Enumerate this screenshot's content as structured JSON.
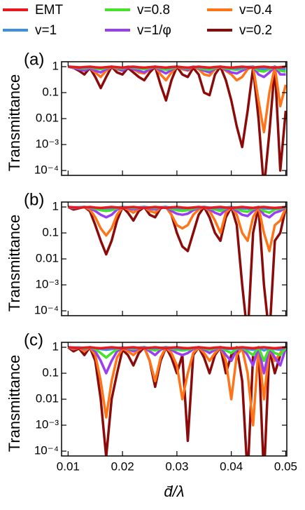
{
  "chart_data": [
    {
      "type": "line",
      "label": "(a)",
      "ylabel": "Transmittance",
      "log_y": true,
      "legend": "top",
      "xlim": [
        0.0088,
        0.0502
      ],
      "ylim": [
        6.5e-05,
        1.55
      ],
      "xticks": [
        0.01,
        0.02,
        0.03,
        0.04,
        0.05
      ],
      "yticks": [
        1,
        0.1,
        0.01,
        {
          "value": 0.001,
          "label": "10⁻³"
        },
        {
          "value": 0.0001,
          "label": "10⁻⁴"
        }
      ],
      "x": [
        0.01,
        0.011,
        0.012,
        0.013,
        0.014,
        0.015,
        0.016,
        0.017,
        0.018,
        0.019,
        0.02,
        0.021,
        0.022,
        0.023,
        0.024,
        0.025,
        0.026,
        0.027,
        0.028,
        0.029,
        0.03,
        0.031,
        0.032,
        0.033,
        0.034,
        0.035,
        0.036,
        0.037,
        0.038,
        0.039,
        0.04,
        0.041,
        0.042,
        0.043,
        0.044,
        0.045,
        0.046,
        0.047,
        0.048,
        0.049,
        0.05
      ],
      "series": [
        {
          "name": "EMT",
          "color": "#e8191c",
          "values": [
            1,
            0.97,
            0.93,
            0.97,
            1,
            0.95,
            0.92,
            0.96,
            1,
            0.96,
            0.92,
            0.97,
            1,
            0.95,
            0.92,
            0.96,
            1,
            0.96,
            0.92,
            0.97,
            1,
            0.95,
            0.92,
            0.96,
            1,
            0.96,
            0.92,
            0.97,
            1,
            0.95,
            0.92,
            0.96,
            1,
            0.96,
            0.92,
            0.97,
            1,
            0.95,
            0.92,
            0.96,
            1
          ]
        },
        {
          "name": "v=1",
          "color": "#3f8fe0",
          "values": [
            1,
            0.98,
            0.95,
            0.92,
            0.97,
            0.92,
            0.9,
            0.95,
            1,
            0.95,
            0.92,
            1,
            0.95,
            0.92,
            0.9,
            0.95,
            1,
            0.92,
            0.88,
            0.93,
            1,
            0.95,
            0.9,
            1,
            0.95,
            0.9,
            0.88,
            0.95,
            1,
            0.92,
            0.88,
            0.85,
            0.9,
            0.97,
            1,
            0.85,
            0.8,
            0.9,
            1,
            0.85,
            0.8
          ]
        },
        {
          "name": "v=0.8",
          "color": "#46e12a",
          "values": [
            1,
            0.95,
            0.9,
            0.85,
            0.95,
            0.85,
            0.8,
            0.9,
            1,
            0.9,
            0.85,
            1,
            0.9,
            0.85,
            0.8,
            0.9,
            1,
            0.85,
            0.75,
            0.85,
            1,
            0.9,
            0.85,
            1,
            0.9,
            0.8,
            0.75,
            0.9,
            1,
            0.85,
            0.8,
            0.75,
            0.85,
            0.95,
            1,
            0.7,
            0.65,
            0.8,
            1,
            0.7,
            0.65
          ]
        },
        {
          "name": "v=1/φ",
          "color": "#9a3ff0",
          "values": [
            1,
            0.9,
            0.8,
            0.7,
            0.9,
            0.7,
            0.6,
            0.8,
            1,
            0.85,
            0.7,
            0.95,
            0.8,
            0.7,
            0.6,
            0.8,
            1,
            0.7,
            0.55,
            0.75,
            1,
            0.85,
            0.75,
            1,
            0.85,
            0.7,
            0.6,
            0.85,
            1,
            0.75,
            0.6,
            0.55,
            0.7,
            0.9,
            1,
            0.5,
            0.4,
            0.6,
            1,
            0.5,
            0.5
          ]
        },
        {
          "name": "v=0.4",
          "color": "#ff7417",
          "values": [
            1,
            0.95,
            0.85,
            0.7,
            0.9,
            0.6,
            0.4,
            0.7,
            1,
            0.8,
            0.7,
            0.95,
            0.8,
            0.6,
            0.55,
            0.8,
            1,
            0.5,
            0.3,
            0.6,
            1,
            0.8,
            0.7,
            1,
            0.8,
            0.5,
            0.45,
            0.8,
            1,
            0.7,
            0.5,
            0.3,
            0.4,
            0.8,
            1,
            0.05,
            0.003,
            0.1,
            1,
            0.03,
            0.2
          ]
        },
        {
          "name": "v=0.2",
          "color": "#8b0b0b",
          "values": [
            1,
            0.9,
            0.7,
            0.5,
            0.9,
            0.4,
            0.15,
            0.4,
            1,
            0.6,
            0.5,
            0.9,
            0.6,
            0.4,
            0.3,
            0.6,
            1,
            0.2,
            0.05,
            0.3,
            1,
            0.5,
            0.4,
            0.9,
            0.5,
            0.1,
            0.08,
            0.5,
            1,
            0.3,
            0.05,
            0.005,
            0.0008,
            0.02,
            0.9,
            0.01,
            2e-05,
            0.003,
            1,
            0.0001,
            0.02
          ]
        }
      ]
    },
    {
      "type": "line",
      "label": "(b)",
      "ylabel": "Transmittance",
      "log_y": true,
      "xlim": [
        0.0088,
        0.0502
      ],
      "ylim": [
        6.5e-05,
        1.55
      ],
      "xticks": [
        0.01,
        0.02,
        0.03,
        0.04,
        0.05
      ],
      "yticks": [
        1,
        0.1,
        0.01,
        {
          "value": 0.001,
          "label": "10⁻³"
        },
        {
          "value": 0.0001,
          "label": "10⁻⁴"
        }
      ],
      "x": [
        0.01,
        0.011,
        0.012,
        0.013,
        0.014,
        0.015,
        0.016,
        0.017,
        0.018,
        0.019,
        0.02,
        0.021,
        0.022,
        0.023,
        0.024,
        0.025,
        0.026,
        0.027,
        0.028,
        0.029,
        0.03,
        0.031,
        0.032,
        0.033,
        0.034,
        0.035,
        0.036,
        0.037,
        0.038,
        0.039,
        0.04,
        0.041,
        0.042,
        0.043,
        0.044,
        0.045,
        0.046,
        0.047,
        0.048,
        0.049,
        0.05
      ],
      "series": [
        {
          "name": "EMT",
          "color": "#e8191c",
          "values": [
            1,
            0.97,
            0.93,
            0.97,
            1,
            0.95,
            0.92,
            0.96,
            1,
            0.96,
            0.92,
            0.97,
            1,
            0.95,
            0.92,
            0.96,
            1,
            0.96,
            0.92,
            0.97,
            1,
            0.95,
            0.92,
            0.96,
            1,
            0.96,
            0.92,
            0.97,
            1,
            0.95,
            0.92,
            0.96,
            1,
            0.96,
            0.92,
            0.97,
            1,
            0.95,
            0.92,
            0.96,
            1
          ]
        },
        {
          "name": "v=1",
          "color": "#3f8fe0",
          "values": [
            1,
            0.97,
            0.98,
            1,
            0.97,
            0.93,
            0.9,
            0.88,
            0.9,
            0.95,
            1,
            0.97,
            0.95,
            0.97,
            1,
            0.96,
            0.95,
            0.98,
            1,
            0.93,
            0.9,
            0.88,
            0.9,
            0.93,
            0.97,
            1,
            0.95,
            0.9,
            0.88,
            0.95,
            1,
            0.92,
            0.88,
            0.85,
            0.92,
            1,
            0.88,
            0.85,
            0.9,
            0.92,
            0.98
          ]
        },
        {
          "name": "v=0.8",
          "color": "#46e12a",
          "values": [
            1,
            0.95,
            0.97,
            1,
            0.95,
            0.85,
            0.75,
            0.7,
            0.75,
            0.9,
            1,
            0.95,
            0.9,
            0.95,
            1,
            0.92,
            0.9,
            0.97,
            1,
            0.85,
            0.75,
            0.7,
            0.75,
            0.85,
            0.95,
            1,
            0.9,
            0.8,
            0.7,
            0.9,
            1,
            0.85,
            0.7,
            0.65,
            0.85,
            1,
            0.7,
            0.6,
            0.8,
            0.85,
            0.97
          ]
        },
        {
          "name": "v=1/φ",
          "color": "#9a3ff0",
          "values": [
            1,
            0.9,
            0.95,
            1,
            0.9,
            0.7,
            0.5,
            0.4,
            0.5,
            0.8,
            1,
            0.9,
            0.8,
            0.9,
            1,
            0.85,
            0.8,
            0.95,
            1,
            0.7,
            0.55,
            0.5,
            0.55,
            0.75,
            0.9,
            1,
            0.8,
            0.6,
            0.5,
            0.8,
            1,
            0.7,
            0.5,
            0.45,
            0.7,
            1,
            0.5,
            0.4,
            0.6,
            0.7,
            0.95
          ]
        },
        {
          "name": "v=0.4",
          "color": "#ff7417",
          "values": [
            1,
            0.9,
            0.95,
            1,
            0.8,
            0.4,
            0.15,
            0.08,
            0.15,
            0.5,
            1,
            0.8,
            0.6,
            0.85,
            1,
            0.7,
            0.6,
            0.95,
            1,
            0.5,
            0.2,
            0.15,
            0.2,
            0.5,
            0.8,
            1,
            0.7,
            0.3,
            0.1,
            0.6,
            1,
            0.5,
            0.1,
            0.05,
            0.4,
            1,
            0.1,
            0.02,
            0.2,
            0.3,
            0.9
          ]
        },
        {
          "name": "v=0.2",
          "color": "#8b0b0b",
          "values": [
            1,
            0.8,
            0.9,
            1,
            0.7,
            0.2,
            0.05,
            0.015,
            0.05,
            0.3,
            1,
            0.6,
            0.3,
            0.7,
            1,
            0.5,
            0.4,
            0.9,
            1,
            0.5,
            0.1,
            0.03,
            0.02,
            0.1,
            0.5,
            1,
            0.4,
            0.1,
            0.05,
            0.4,
            1,
            0.2,
            0.001,
            1e-05,
            0.1,
            1,
            0.001,
            1e-05,
            0.05,
            0.1,
            0.9
          ]
        }
      ]
    },
    {
      "type": "line",
      "label": "(c)",
      "ylabel": "Transmittance",
      "xlabel": "d̄/λ",
      "log_y": true,
      "xlim": [
        0.0088,
        0.0502
      ],
      "ylim": [
        6.5e-05,
        1.55
      ],
      "xticks": [
        0.01,
        0.02,
        0.03,
        0.04,
        0.05
      ],
      "yticks": [
        1,
        0.1,
        0.01,
        {
          "value": 0.001,
          "label": "10⁻³"
        },
        {
          "value": 0.0001,
          "label": "10⁻⁴"
        }
      ],
      "x": [
        0.01,
        0.011,
        0.012,
        0.013,
        0.014,
        0.015,
        0.016,
        0.017,
        0.018,
        0.019,
        0.02,
        0.021,
        0.022,
        0.023,
        0.024,
        0.025,
        0.026,
        0.027,
        0.028,
        0.029,
        0.03,
        0.031,
        0.032,
        0.033,
        0.034,
        0.035,
        0.036,
        0.037,
        0.038,
        0.039,
        0.04,
        0.041,
        0.042,
        0.043,
        0.044,
        0.045,
        0.046,
        0.047,
        0.048,
        0.049,
        0.05
      ],
      "series": [
        {
          "name": "EMT",
          "color": "#e8191c",
          "values": [
            1,
            0.97,
            0.93,
            0.97,
            1,
            0.95,
            0.92,
            0.96,
            1,
            0.96,
            0.92,
            0.97,
            1,
            0.95,
            0.92,
            0.96,
            1,
            0.96,
            0.92,
            0.97,
            1,
            0.95,
            0.92,
            0.96,
            1,
            0.96,
            0.92,
            0.97,
            1,
            0.95,
            0.92,
            0.96,
            1,
            0.96,
            0.92,
            0.97,
            1,
            0.95,
            0.92,
            0.96,
            1
          ]
        },
        {
          "name": "v=1",
          "color": "#3f8fe0",
          "values": [
            1,
            0.98,
            0.99,
            0.95,
            1,
            0.93,
            0.85,
            0.8,
            0.85,
            0.93,
            0.99,
            0.96,
            0.93,
            0.97,
            1,
            0.93,
            0.9,
            0.95,
            1,
            0.95,
            0.9,
            0.88,
            0.9,
            0.96,
            1,
            0.95,
            0.9,
            0.95,
            1,
            0.88,
            0.85,
            0.95,
            0.99,
            0.85,
            0.8,
            1,
            0.75,
            0.97,
            0.85,
            0.8,
            0.97
          ]
        },
        {
          "name": "v=0.8",
          "color": "#46e12a",
          "values": [
            1,
            0.95,
            0.98,
            0.9,
            1,
            0.85,
            0.6,
            0.4,
            0.6,
            0.85,
            0.97,
            0.92,
            0.85,
            0.95,
            1,
            0.85,
            0.75,
            0.9,
            1,
            0.9,
            0.8,
            0.75,
            0.8,
            0.92,
            1,
            0.9,
            0.8,
            0.9,
            1,
            0.75,
            0.6,
            0.9,
            0.97,
            0.7,
            0.5,
            1,
            0.3,
            0.95,
            0.6,
            0.5,
            0.95
          ]
        },
        {
          "name": "v=1/φ",
          "color": "#9a3ff0",
          "values": [
            1,
            0.9,
            0.97,
            0.85,
            1,
            0.7,
            0.3,
            0.1,
            0.3,
            0.7,
            0.95,
            0.85,
            0.7,
            0.9,
            1,
            0.7,
            0.5,
            0.8,
            1,
            0.8,
            0.6,
            0.5,
            0.6,
            0.85,
            1,
            0.8,
            0.6,
            0.8,
            1,
            0.5,
            0.3,
            0.8,
            0.95,
            0.5,
            0.2,
            1,
            0.1,
            0.9,
            0.4,
            0.2,
            0.9
          ]
        },
        {
          "name": "v=0.4",
          "color": "#ff7417",
          "values": [
            1,
            0.85,
            0.95,
            0.7,
            1,
            0.5,
            0.05,
            0.002,
            0.05,
            0.4,
            0.9,
            0.7,
            0.5,
            0.8,
            1,
            0.3,
            0.05,
            0.4,
            1,
            0.6,
            0.2,
            0.01,
            0.1,
            0.6,
            1,
            0.6,
            0.3,
            0.6,
            1,
            0.3,
            0.01,
            0.5,
            0.9,
            0.1,
            0.001,
            1,
            0.01,
            0.9,
            0.3,
            0.6,
            1
          ]
        },
        {
          "name": "v=0.2",
          "color": "#8b0b0b",
          "values": [
            1,
            0.7,
            0.9,
            0.5,
            1,
            0.3,
            0.01,
            6e-05,
            0.01,
            0.1,
            0.8,
            0.5,
            0.2,
            0.6,
            1,
            0.3,
            0.03,
            0.3,
            1,
            0.4,
            0.1,
            0.5,
            0.00025,
            0.5,
            1,
            0.4,
            0.1,
            0.5,
            1,
            0.1,
            0.5,
            1,
            0.05,
            1e-05,
            0.5,
            1,
            1e-05,
            0.8,
            0.1,
            0.5,
            1
          ]
        }
      ]
    }
  ]
}
